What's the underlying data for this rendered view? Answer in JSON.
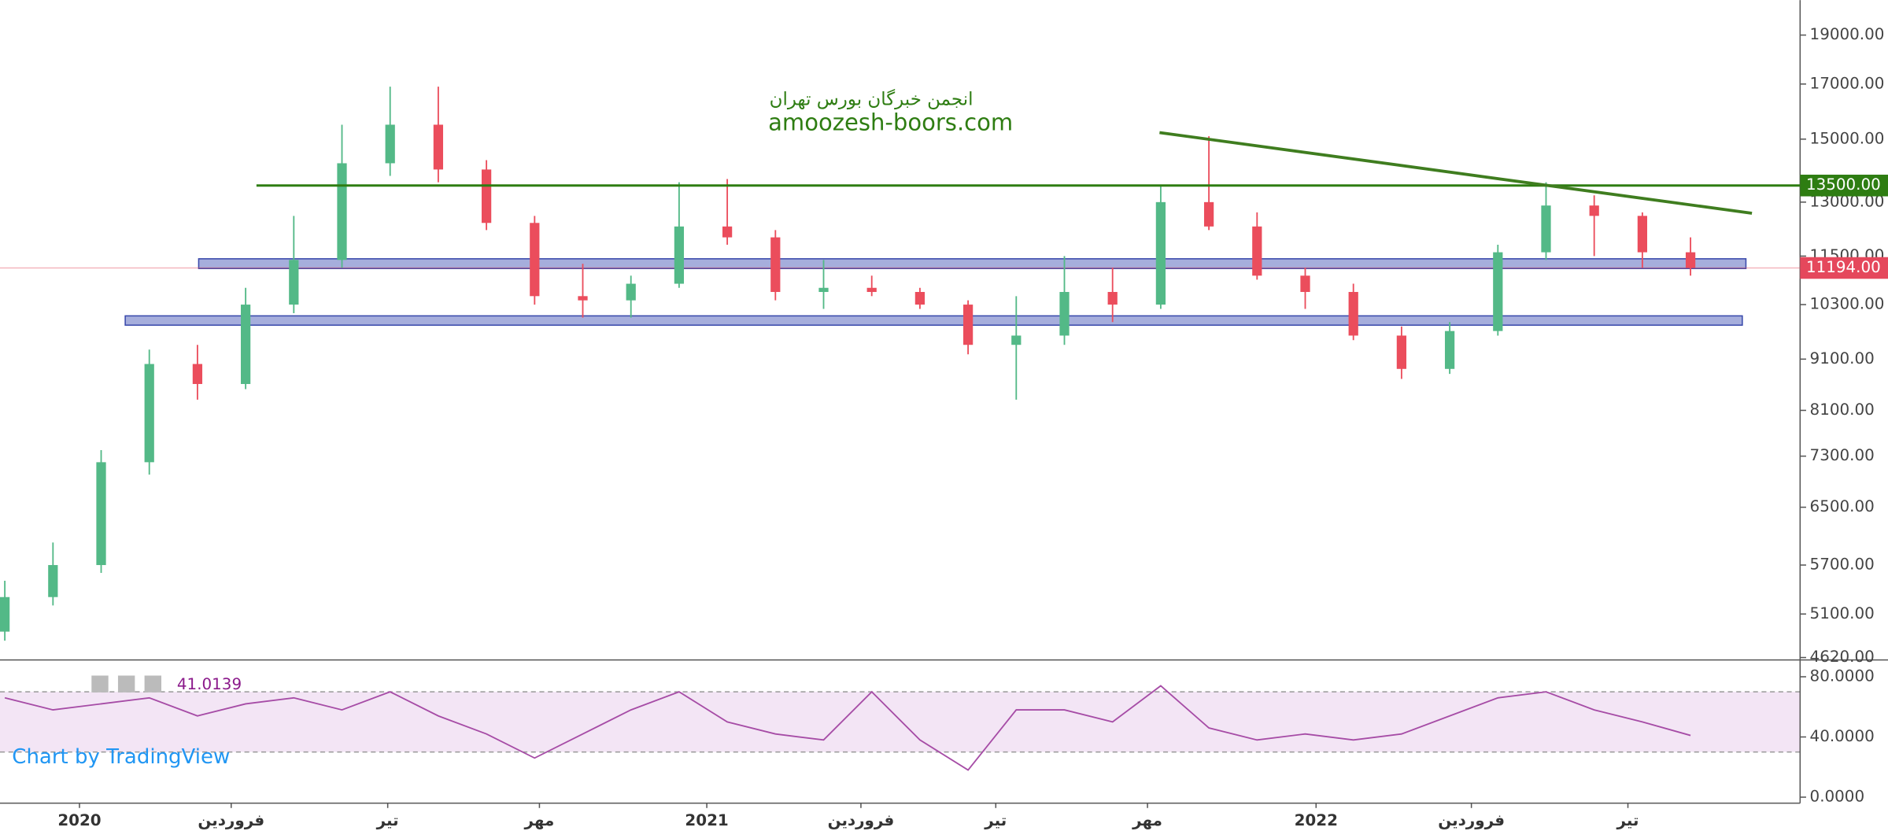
{
  "chart_data": [
    {
      "type": "candlestick",
      "watermark": [
        "انجمن خبرگان بورس تهران",
        "amoozesh-boors.com"
      ],
      "x": [
        0.4,
        4.4,
        8.4,
        12.4,
        16.4,
        20.4,
        24.4,
        28.4,
        32.4,
        36.4,
        40.4,
        44.4,
        48.4,
        52.4,
        56.4,
        60.4,
        64.4,
        68.4,
        72.4,
        76.4,
        80.4,
        84.4,
        88.4,
        92.4,
        96.4,
        100.4,
        104.4,
        108.4,
        112.4,
        116.4,
        120.4,
        124.4,
        128.4,
        132.4,
        136.4,
        140.4
      ],
      "open": [
        4900,
        5300,
        5700,
        7200,
        9000,
        8600,
        10300,
        11400,
        14200,
        15500,
        14000,
        12400,
        10500,
        10400,
        10800,
        12300,
        12000,
        10600,
        10700,
        10600,
        10300,
        9400,
        9600,
        10600,
        10300,
        13000,
        12300,
        11000,
        10600,
        9600,
        8900,
        9700,
        11600,
        12900,
        12600,
        11600
      ],
      "high": [
        5500,
        6000,
        7400,
        9300,
        9400,
        10700,
        12600,
        15500,
        16900,
        16900,
        14300,
        12600,
        11300,
        11000,
        13600,
        13700,
        12200,
        11400,
        11000,
        10700,
        10400,
        10500,
        11500,
        11200,
        13500,
        15100,
        12700,
        11200,
        10800,
        9800,
        9900,
        11800,
        13600,
        13200,
        12700,
        12000
      ],
      "low": [
        4800,
        5200,
        5600,
        7000,
        8300,
        8500,
        10100,
        11200,
        13800,
        13600,
        12200,
        10300,
        10000,
        10000,
        10700,
        11800,
        10400,
        10200,
        10500,
        10200,
        9200,
        8300,
        9400,
        9900,
        10200,
        12200,
        10900,
        10200,
        9500,
        8700,
        8800,
        9600,
        11400,
        11500,
        11200,
        11000
      ],
      "close": [
        5300,
        5700,
        7200,
        9000,
        8600,
        10300,
        11400,
        14200,
        15500,
        14000,
        12400,
        10500,
        10400,
        10800,
        12300,
        12000,
        10600,
        10700,
        10600,
        10300,
        9400,
        9600,
        10600,
        10300,
        13000,
        12300,
        11000,
        10600,
        9600,
        8900,
        9700,
        11600,
        12900,
        12600,
        11600,
        11194
      ],
      "up_color": "#53b987",
      "down_color": "#eb4d5c",
      "xlim": [
        0,
        149.5
      ],
      "ylim": [
        4595,
        20570
      ],
      "log_scale": true,
      "yticks": [
        {
          "value": 4620,
          "label": "4620.00"
        },
        {
          "value": 5100,
          "label": "5100.00"
        },
        {
          "value": 5700,
          "label": "5700.00"
        },
        {
          "value": 6500,
          "label": "6500.00"
        },
        {
          "value": 7300,
          "label": "7300.00"
        },
        {
          "value": 8100,
          "label": "8100.00"
        },
        {
          "value": 9100,
          "label": "9100.00"
        },
        {
          "value": 10300,
          "label": "10300.00"
        },
        {
          "value": 11500,
          "label": "11500.00"
        },
        {
          "value": 13000,
          "label": "13000.00"
        },
        {
          "value": 15000,
          "label": "15000.00"
        },
        {
          "value": 17000,
          "label": "17000.00"
        },
        {
          "value": 19000,
          "label": "19000.00"
        }
      ],
      "zones": [
        {
          "range": [
            11180,
            11430
          ],
          "x": [
            16.5,
            145
          ]
        },
        {
          "range": [
            9830,
            10040
          ],
          "x": [
            10.4,
            144.7
          ]
        }
      ],
      "zone_color": "#5c6bc0",
      "hline": {
        "value": 13500,
        "label": "13500.00",
        "x": 21.3,
        "color": "#2e7d12"
      },
      "trendline": {
        "x": [
          96.3,
          145.5
        ],
        "y": [
          15225,
          12675
        ],
        "color": "#3f7d1f"
      },
      "last_price": {
        "value": 11194,
        "label": "11194.00",
        "color": "#e5485c"
      }
    },
    {
      "type": "line",
      "x": [
        0.4,
        4.4,
        8.4,
        12.4,
        16.4,
        20.4,
        24.4,
        28.4,
        32.4,
        36.4,
        40.4,
        44.4,
        48.4,
        52.4,
        56.4,
        60.4,
        64.4,
        68.4,
        72.4,
        76.4,
        80.4,
        84.4,
        88.4,
        92.4,
        96.4,
        100.4,
        104.4,
        108.4,
        112.4,
        116.4,
        120.4,
        124.4,
        128.4,
        132.4,
        136.4,
        140.4
      ],
      "series": [
        {
          "color": "#a64ca6",
          "values": [
            66,
            58,
            62,
            66,
            54,
            62,
            66,
            58,
            70,
            54,
            42,
            26,
            42,
            58,
            70,
            50,
            42,
            38,
            70,
            38,
            18,
            58,
            58,
            50,
            74,
            46,
            38,
            42,
            38,
            42,
            54,
            66,
            70,
            58,
            50,
            41.0139
          ]
        }
      ],
      "last_value": 41.0139,
      "band": [
        30,
        70
      ],
      "xlim": [
        0,
        149.5
      ],
      "ylim": [
        -4,
        91.2
      ],
      "yticks": [
        {
          "value": 0,
          "label": "0.0000"
        },
        {
          "value": 40,
          "label": "40.0000"
        },
        {
          "value": 80,
          "label": "80.0000"
        }
      ],
      "xticks": [
        {
          "value": 6.6,
          "label": "2020"
        },
        {
          "value": 19.2,
          "label": "فروردین"
        },
        {
          "value": 32.2,
          "label": "تیر"
        },
        {
          "value": 44.8,
          "label": "مهر"
        },
        {
          "value": 58.7,
          "label": "2021"
        },
        {
          "value": 71.5,
          "label": "فروردین"
        },
        {
          "value": 82.7,
          "label": "تیر"
        },
        {
          "value": 95.3,
          "label": "مهر"
        },
        {
          "value": 109.3,
          "label": "2022"
        },
        {
          "value": 122.2,
          "label": "فروردین"
        },
        {
          "value": 135.2,
          "label": "تیر"
        }
      ]
    }
  ],
  "credit": "Chart by TradingView"
}
